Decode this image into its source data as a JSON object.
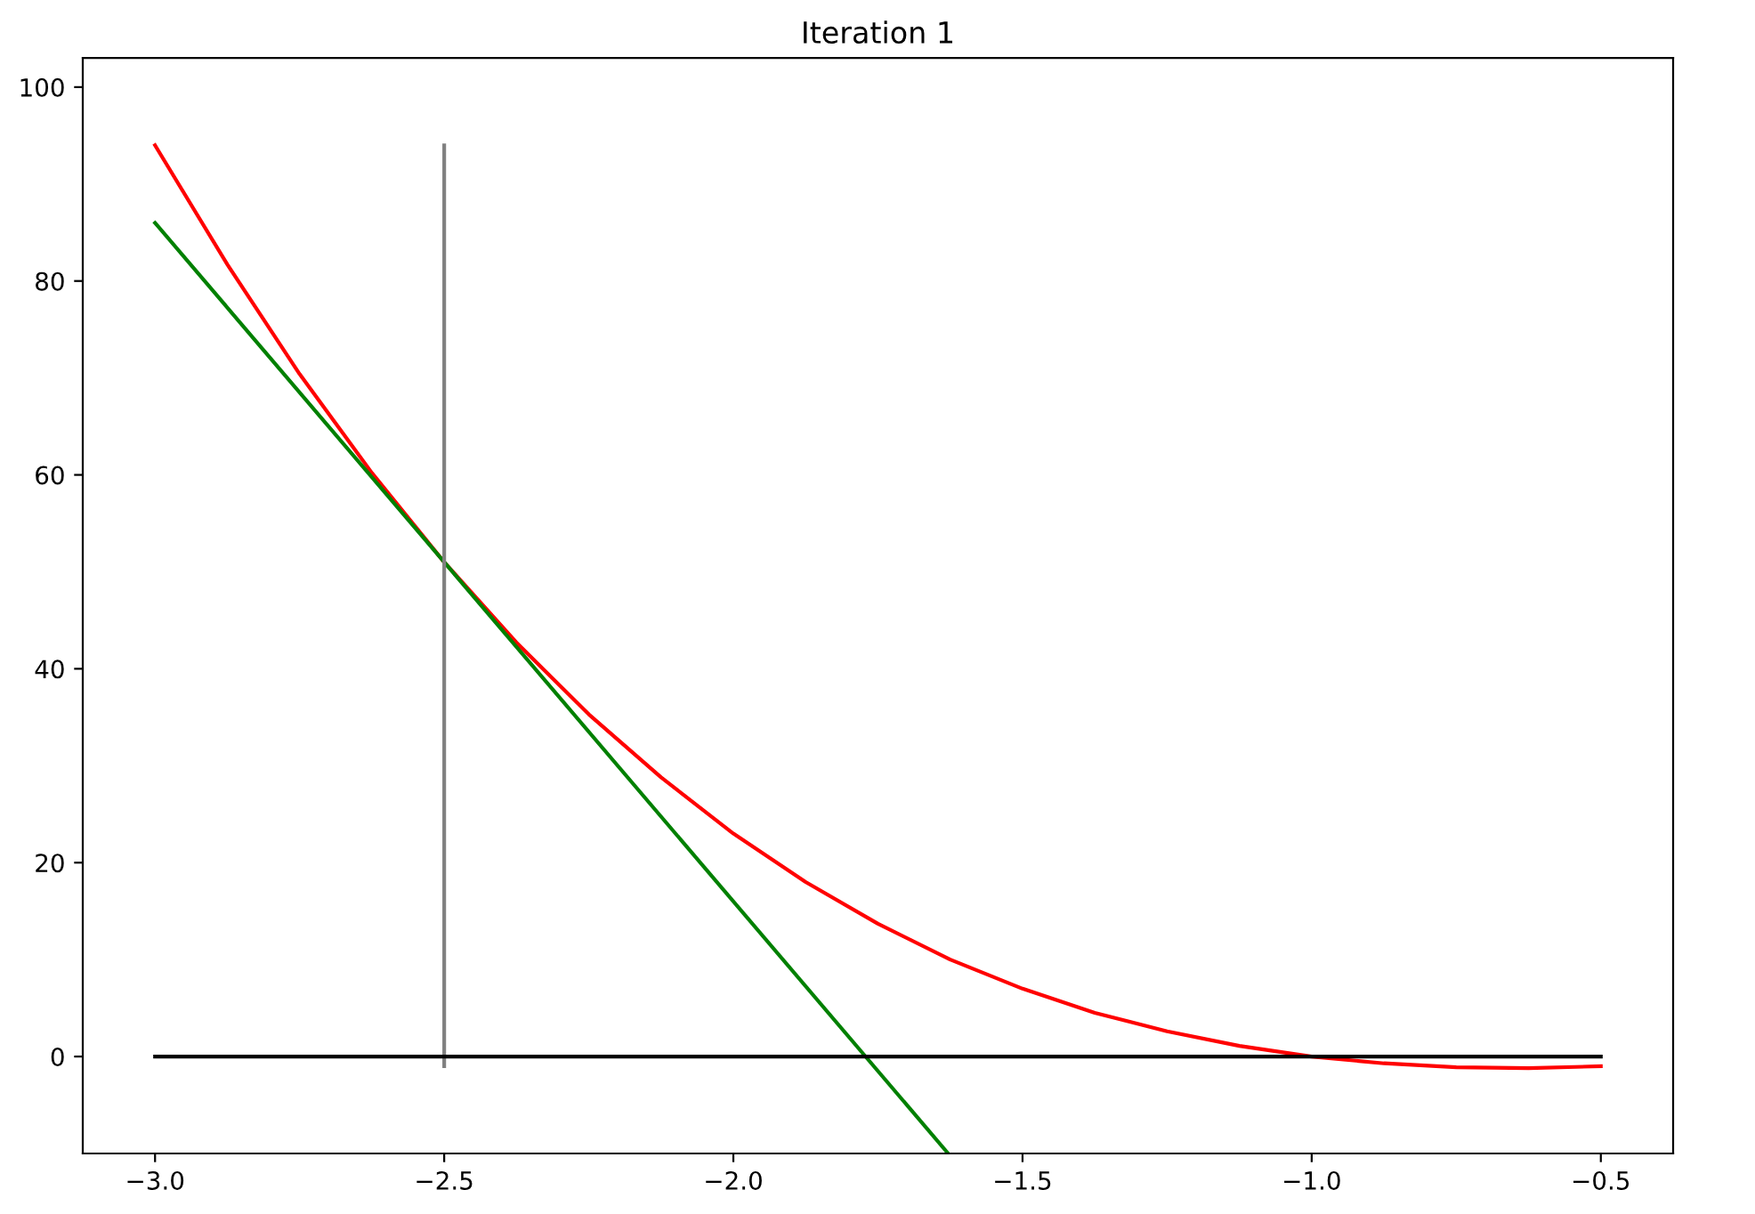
{
  "chart_data": {
    "type": "line",
    "title": "Iteration 1",
    "series": [
      {
        "color": "#ff0000",
        "x": [
          -3,
          -2.875,
          -2.75,
          -2.625,
          -2.5,
          -2.375,
          -2.25,
          -2.125,
          -2,
          -1.875,
          -1.75,
          -1.625,
          -1.5,
          -1.375,
          -1.25,
          -1.125,
          -1,
          -0.875,
          -0.75,
          -0.625,
          -0.5
        ],
        "values": [
          94,
          81.7,
          70.4,
          60.2,
          51,
          42.7,
          35.3,
          28.8,
          23,
          18,
          13.7,
          10,
          7,
          4.5,
          2.6,
          1.1,
          0,
          -0.7,
          -1.1,
          -1.2,
          -1
        ]
      },
      {
        "color": "#008000",
        "x": [
          -3,
          -1.63
        ],
        "values": [
          86,
          -9.9
        ]
      },
      {
        "color": "#808080",
        "x": [
          -2.5,
          -2.5
        ],
        "values": [
          -1,
          94
        ]
      },
      {
        "color": "#000000",
        "x": [
          -3,
          -0.5
        ],
        "values": [
          0,
          0
        ]
      }
    ],
    "xlim": [
      -3.125,
      -0.375
    ],
    "ylim": [
      -10,
      103
    ],
    "xticks": [
      {
        "value": -3,
        "label": "−3.0"
      },
      {
        "value": -2.5,
        "label": "−2.5"
      },
      {
        "value": -2,
        "label": "−2.0"
      },
      {
        "value": -1.5,
        "label": "−1.5"
      },
      {
        "value": -1,
        "label": "−1.0"
      },
      {
        "value": -0.5,
        "label": "−0.5"
      }
    ],
    "yticks": [
      0,
      20,
      40,
      60,
      80,
      100
    ],
    "grid": false,
    "legend": false,
    "marker": "none",
    "line_style": "solid"
  }
}
